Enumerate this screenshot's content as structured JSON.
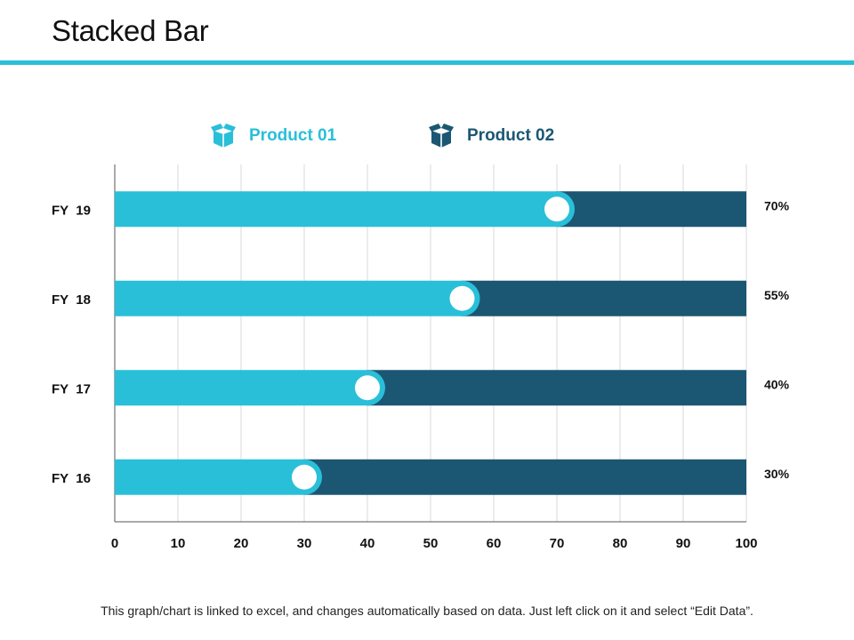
{
  "header": {
    "title": "Stacked Bar"
  },
  "colors": {
    "accent": "#2bbfd8",
    "product1": "#29bfd9",
    "product2": "#1b5773",
    "grid": "#d9d9d9",
    "axis": "#555555",
    "text": "#111111"
  },
  "legend": [
    {
      "label": "Product 01",
      "icon": "box-icon"
    },
    {
      "label": "Product 02",
      "icon": "box-icon"
    }
  ],
  "chart_data": {
    "type": "bar",
    "orientation": "horizontal",
    "stacked": true,
    "categories": [
      "FY  19",
      "FY  18",
      "FY  17",
      "FY  16"
    ],
    "series": [
      {
        "name": "Product 01",
        "values": [
          70,
          55,
          40,
          30
        ]
      },
      {
        "name": "Product 02",
        "values": [
          30,
          45,
          60,
          70
        ]
      }
    ],
    "data_labels": [
      "70%",
      "55%",
      "40%",
      "30%"
    ],
    "xlim": [
      0,
      100
    ],
    "xticks": [
      0,
      10,
      20,
      30,
      40,
      50,
      60,
      70,
      80,
      90,
      100
    ],
    "grid": true,
    "legend_position": "top"
  },
  "footnote": "This graph/chart is linked to excel, and changes automatically  based on data.  Just left click on it and select “Edit Data”."
}
